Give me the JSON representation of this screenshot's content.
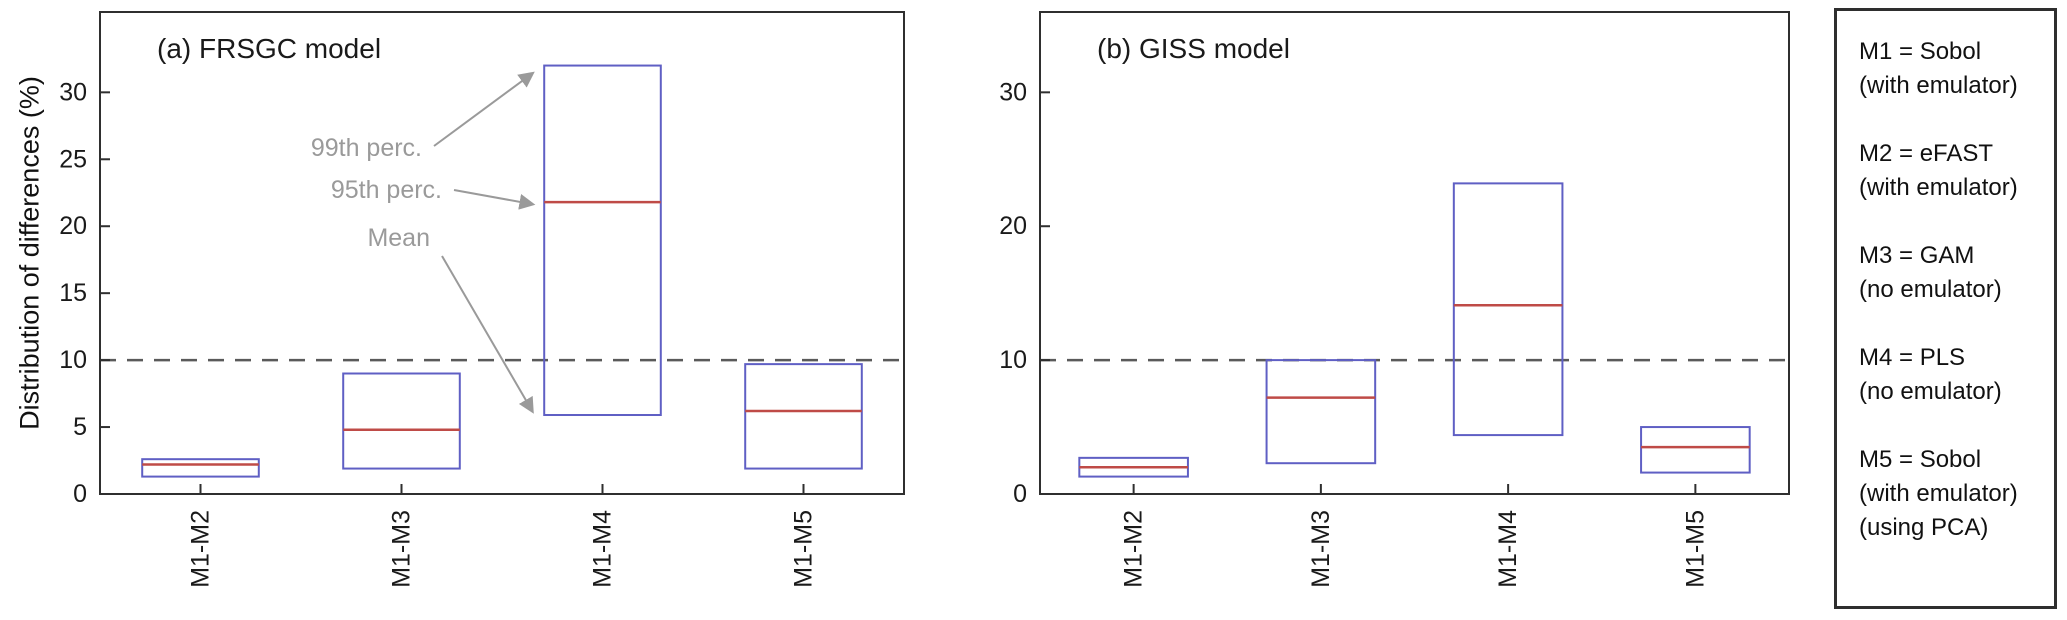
{
  "ylabel": "Distribution of differences (%)",
  "colors": {
    "box_edge": "#5f5fc4",
    "median_line": "#bf4b47",
    "dashed_line": "#5a5a5a",
    "frame": "#2f2f2f",
    "tick_text": "#1a1a1a",
    "title_text": "#1a1a1a",
    "annotation_text": "#9a9a9a",
    "background": "#ffffff"
  },
  "chart_data": [
    {
      "type": "box",
      "panel": "a",
      "title": "(a) FRSGC model",
      "ylabel": "Distribution of differences (%)",
      "categories": [
        "M1-M2",
        "M1-M3",
        "M1-M4",
        "M1-M5"
      ],
      "boxes": [
        {
          "category": "M1-M2",
          "mean": 1.3,
          "p95": 2.2,
          "p99": 2.6
        },
        {
          "category": "M1-M3",
          "mean": 1.9,
          "p95": 4.8,
          "p99": 9.0
        },
        {
          "category": "M1-M4",
          "mean": 5.9,
          "p95": 21.8,
          "p99": 32.0
        },
        {
          "category": "M1-M5",
          "mean": 1.9,
          "p95": 6.2,
          "p99": 9.7
        }
      ],
      "ylim": [
        0,
        36
      ],
      "yticks": [
        0,
        5,
        10,
        15,
        20,
        25,
        30
      ],
      "dashed_line_y": 10,
      "grid": false,
      "annotations": [
        {
          "label": "99th perc.",
          "target": "p99",
          "category": "M1-M4"
        },
        {
          "label": "95th perc.",
          "target": "p95",
          "category": "M1-M4"
        },
        {
          "label": "Mean",
          "target": "mean",
          "category": "M1-M4"
        }
      ]
    },
    {
      "type": "box",
      "panel": "b",
      "title": "(b) GISS model",
      "categories": [
        "M1-M2",
        "M1-M3",
        "M1-M4",
        "M1-M5"
      ],
      "boxes": [
        {
          "category": "M1-M2",
          "mean": 1.3,
          "p95": 2.0,
          "p99": 2.7
        },
        {
          "category": "M1-M3",
          "mean": 2.3,
          "p95": 7.2,
          "p99": 10.0
        },
        {
          "category": "M1-M4",
          "mean": 4.4,
          "p95": 14.1,
          "p99": 23.2
        },
        {
          "category": "M1-M5",
          "mean": 1.6,
          "p95": 3.5,
          "p99": 5.0
        }
      ],
      "ylim": [
        0,
        36
      ],
      "yticks": [
        0,
        10,
        20,
        30
      ],
      "dashed_line_y": 10,
      "grid": false,
      "annotations": []
    }
  ],
  "legend": {
    "entries": [
      {
        "lines": [
          "M1 = Sobol",
          "(with emulator)"
        ]
      },
      {
        "lines": [
          "M2 = eFAST",
          "(with emulator)"
        ]
      },
      {
        "lines": [
          "M3 = GAM",
          "(no emulator)"
        ]
      },
      {
        "lines": [
          "M4 = PLS",
          "(no emulator)"
        ]
      },
      {
        "lines": [
          "M5 = Sobol",
          "(with emulator)",
          "(using PCA)"
        ]
      }
    ]
  }
}
